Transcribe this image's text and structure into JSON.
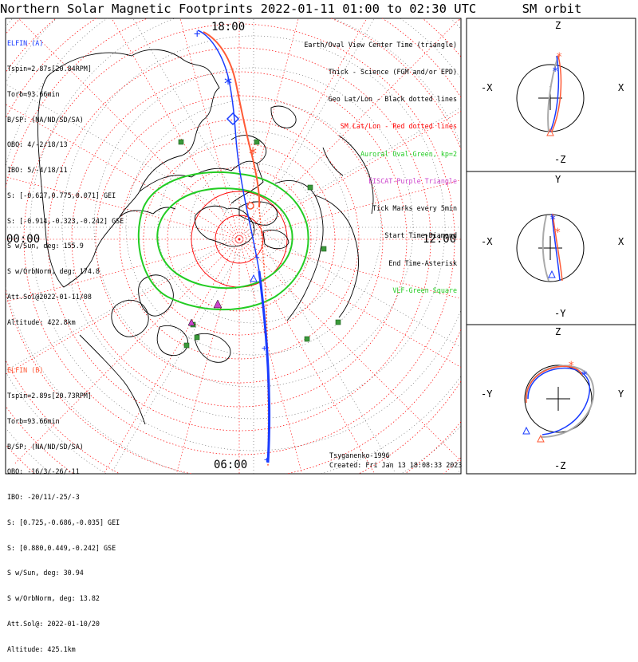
{
  "header": {
    "title": "Northern Solar Magnetic Footprints 2022-01-11 01:00 to 02:30 UTC",
    "orbit_title": "SM orbit"
  },
  "map": {
    "clock_labels": {
      "top": "18:00",
      "left": "00:00",
      "right": "12:00",
      "bottom": "06:00"
    },
    "model": "Tsyganenko-1996",
    "created": "Created: Fri Jan 13 18:08:33 2023"
  },
  "elfin_a": {
    "header": "ELFIN (A)",
    "lines": [
      "Tspin=2.87s[20.84RPM]",
      "Torb=93.66min",
      "B/SP: (NA/ND/SD/SA)",
      "OBO: 4/-2/18/13",
      "IBO: 5/-4/18/11",
      "S: [-0.627,0.775,0.071] GEI",
      "S: [-0.914,-0.323,-0.242] GSE",
      "S w/Sun, deg: 155.9",
      "S w/OrbNorm, deg: 174.8",
      "Att.Sol@2022-01-11/08",
      "Altitude: 422.8km"
    ],
    "color": "#1a3cff"
  },
  "elfin_b": {
    "header": "ELFIN (B)",
    "lines": [
      "Tspin=2.89s[20.73RPM]",
      "Torb=93.66min",
      "B/SP: (NA/ND/SD/SA)",
      "OBO: -16/3/-26/-11",
      "IBO: -20/11/-25/-3",
      "S: [0.725,-0.686,-0.035] GEI",
      "S: [0.880,0.449,-0.242] GSE",
      "S w/Sun, deg: 30.94",
      "S w/OrbNorm, deg: 13.82",
      "Att.Sol@: 2022-01-10/20",
      "Altitude: 425.1km"
    ],
    "color": "#ff5a36"
  },
  "legend": [
    {
      "text": "Earth/Oval View Center Time (triangle)",
      "color": "#000000"
    },
    {
      "text": "Thick - Science (FGM and/or EPD)",
      "color": "#000000"
    },
    {
      "text": "Geo Lat/Lon - Black dotted lines",
      "color": "#000000"
    },
    {
      "text": "SM Lat/Lon - Red dotted lines",
      "color": "#ff0000"
    },
    {
      "text": "Auroral Oval-Green, kp=2",
      "color": "#22cc22"
    },
    {
      "text": "EISCAT-Purple Triangle",
      "color": "#cc44cc"
    },
    {
      "text": "Tick Marks every 5min",
      "color": "#000000"
    },
    {
      "text": "Start Time-Diamond",
      "color": "#000000"
    },
    {
      "text": "End Time-Asterisk",
      "color": "#000000"
    },
    {
      "text": "VLF-Green Square",
      "color": "#22cc22"
    }
  ],
  "orbit_panels": [
    {
      "top": "Z",
      "bottom": "-Z",
      "left": "-X",
      "right": "X"
    },
    {
      "top": "Y",
      "bottom": "-Y",
      "left": "-X",
      "right": "X"
    },
    {
      "top": "Z",
      "bottom": "-Z",
      "left": "-Y",
      "right": "Y"
    }
  ],
  "colors": {
    "red_grid": "#ff0000",
    "oval": "#22cc22",
    "vlf": "#3a9a3a",
    "eiscat": "#cc44cc"
  }
}
